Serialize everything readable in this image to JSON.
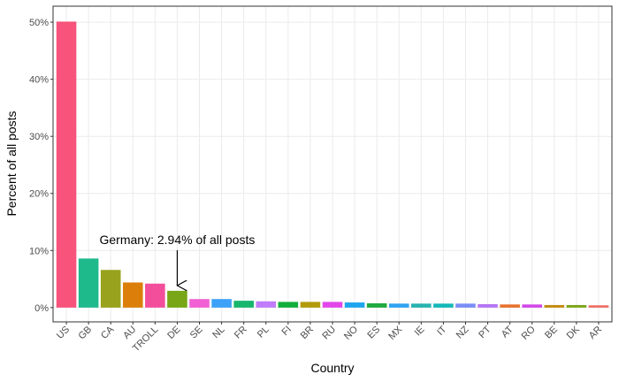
{
  "chart_data": {
    "type": "bar",
    "x_label": "Country",
    "y_label": "Percent of all posts",
    "categories": [
      "US",
      "GB",
      "CA",
      "AU",
      "TROLL",
      "DE",
      "SE",
      "NL",
      "FR",
      "PL",
      "FI",
      "BR",
      "RU",
      "NO",
      "ES",
      "MX",
      "IE",
      "IT",
      "NZ",
      "PT",
      "AT",
      "RO",
      "BE",
      "DK",
      "AR"
    ],
    "values": [
      50.1,
      8.6,
      6.6,
      4.4,
      4.2,
      2.94,
      1.5,
      1.5,
      1.2,
      1.1,
      1.0,
      1.0,
      1.0,
      0.9,
      0.75,
      0.7,
      0.7,
      0.7,
      0.7,
      0.6,
      0.55,
      0.55,
      0.45,
      0.45,
      0.4
    ],
    "colors": [
      "#F8537A",
      "#1FBA8C",
      "#99A21C",
      "#DC7F0A",
      "#F24E9B",
      "#78A617",
      "#F161D3",
      "#3DA1F8",
      "#19B66E",
      "#C07CF9",
      "#11AE3A",
      "#B39A0D",
      "#E245EA",
      "#1EA5EE",
      "#1EAA3E",
      "#2FA3F0",
      "#27B3B0",
      "#14B8B8",
      "#7B8EF6",
      "#B575F4",
      "#E8712C",
      "#D146E8",
      "#C38B0B",
      "#7BA61A",
      "#EF6A60"
    ],
    "ylim": [
      -2.5,
      52.8
    ],
    "yticks": [
      {
        "value": 0,
        "label": "0%"
      },
      {
        "value": 10,
        "label": "10%"
      },
      {
        "value": 20,
        "label": "20%"
      },
      {
        "value": 30,
        "label": "30%"
      },
      {
        "value": 40,
        "label": "40%"
      },
      {
        "value": 50,
        "label": "50%"
      }
    ],
    "grid": true,
    "annotation": {
      "text": "Germany: 2.94% of all posts",
      "category_index": 5
    }
  }
}
